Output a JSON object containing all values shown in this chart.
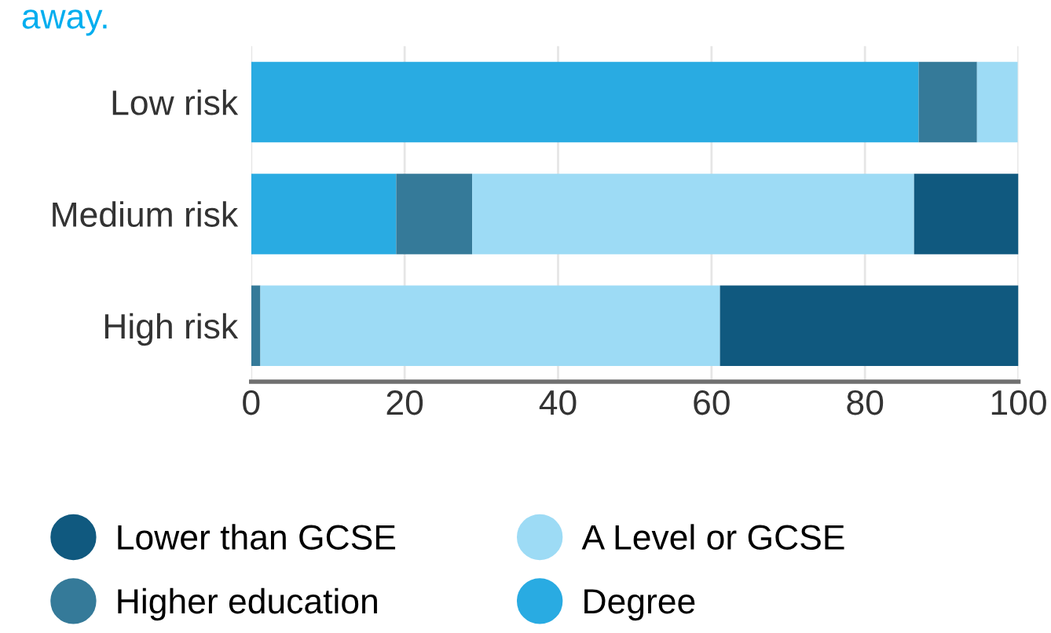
{
  "chart_data": {
    "type": "bar",
    "orientation": "horizontal",
    "stacked": true,
    "title": "away.",
    "categories": [
      "Low risk",
      "Medium risk",
      "High risk"
    ],
    "series": [
      {
        "name": "Degree",
        "color": "#29abe2",
        "values": [
          87.0,
          18.9,
          0
        ]
      },
      {
        "name": "Higher education",
        "color": "#357a99",
        "values": [
          7.6,
          9.9,
          1.2
        ]
      },
      {
        "name": "A Level or GCSE",
        "color": "#9ddbf5",
        "values": [
          5.3,
          57.6,
          59.9
        ]
      },
      {
        "name": "Lower than GCSE",
        "color": "#10597f",
        "values": [
          null,
          13.6,
          38.9
        ]
      }
    ],
    "xlim": [
      0,
      100
    ],
    "xticks": [
      0,
      20,
      40,
      60,
      80,
      100
    ],
    "grid": "x",
    "legend": "bottom"
  }
}
